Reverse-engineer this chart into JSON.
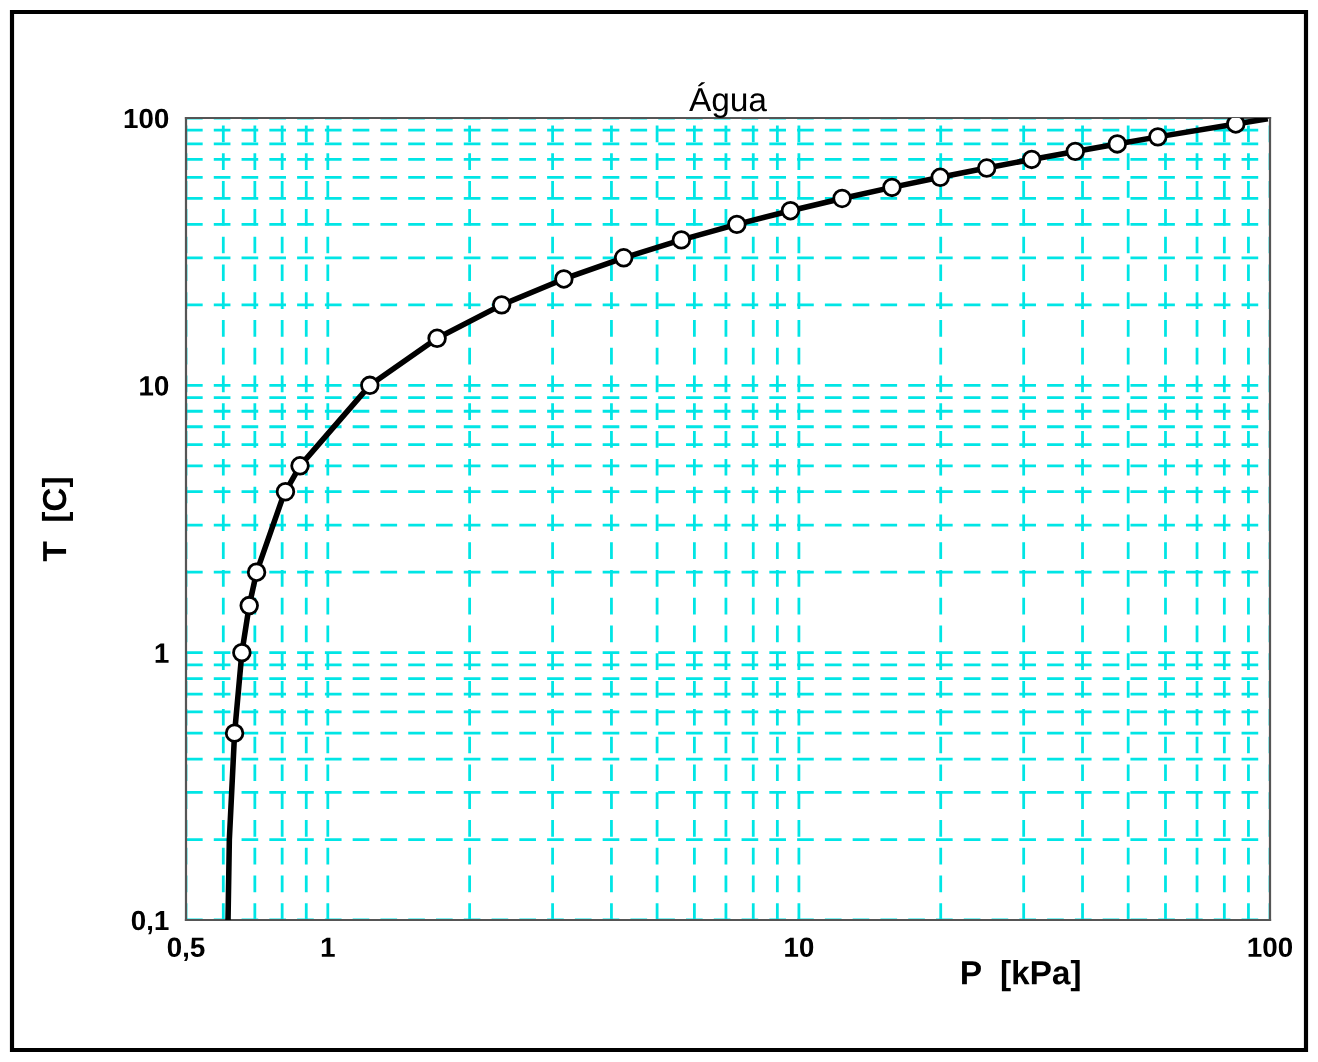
{
  "chart_data": {
    "type": "line",
    "title": "Água",
    "xlabel": "P  [kPa]",
    "ylabel": "T  [C]",
    "log": "xy",
    "xlim": [
      0.5,
      100
    ],
    "ylim": [
      0.1,
      100
    ],
    "xticks": [
      {
        "value": 0.5,
        "label": "0,5"
      },
      1,
      10,
      100
    ],
    "yticks": [
      {
        "value": 0.1,
        "label": "0,1"
      },
      1,
      10,
      100
    ],
    "grid": true,
    "legend": false,
    "series": [
      {
        "color": "#000000",
        "marker": "none",
        "line_style": "solid",
        "x": [
          0.614,
          0.618,
          0.634,
          0.657,
          0.681,
          0.706,
          0.802,
          0.813,
          0.873,
          1.228,
          1.706,
          2.339,
          3.17,
          4.247,
          5.629,
          7.384,
          9.595,
          12.35,
          15.76,
          19.95,
          25.04,
          31.2,
          38.6,
          47.4,
          57.8,
          84.6,
          97.6
        ],
        "values": [
          0.1,
          0.2,
          0.5,
          1,
          1.5,
          2,
          3.8,
          4,
          5,
          10,
          15,
          20,
          25,
          30,
          35,
          40,
          45,
          50,
          55,
          60,
          65,
          70,
          75,
          80,
          85,
          95,
          99
        ]
      },
      {
        "type": "scatter",
        "color": "#000000",
        "marker": "circle",
        "x": [
          0.634,
          0.657,
          0.681,
          0.706,
          0.802,
          0.813,
          0.873,
          1.228,
          1.706,
          2.339,
          3.17,
          4.247,
          5.629,
          7.384,
          9.595,
          12.35,
          15.76,
          19.95,
          25.04,
          31.2,
          38.6,
          47.4,
          57.8,
          84.6
        ],
        "values": [
          0.5,
          1,
          1.5,
          2,
          null,
          4,
          5,
          10,
          15,
          20,
          25,
          30,
          35,
          40,
          45,
          50,
          55,
          60,
          65,
          70,
          75,
          80,
          85,
          95
        ]
      }
    ]
  }
}
